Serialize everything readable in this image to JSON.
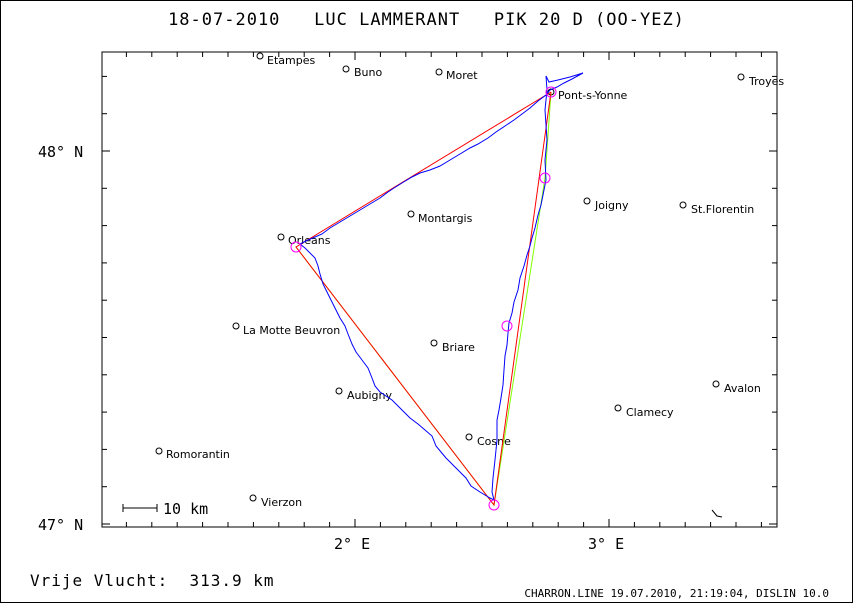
{
  "header": {
    "date": "18-07-2010",
    "pilot": "LUC LAMMERANT",
    "glider": "PIK 20 D (OO-YEZ)"
  },
  "axes": {
    "lat_labels": [
      "48° N",
      "47° N"
    ],
    "lon_labels": [
      "2° E",
      "3° E"
    ]
  },
  "scale_label": "10 km",
  "towns": [
    {
      "name": "Etampes"
    },
    {
      "name": "Buno"
    },
    {
      "name": "Moret"
    },
    {
      "name": "Troyes"
    },
    {
      "name": "Pont-s-Yonne"
    },
    {
      "name": "Joigny"
    },
    {
      "name": "St.Florentin"
    },
    {
      "name": "Montargis"
    },
    {
      "name": "Orleans"
    },
    {
      "name": "La Motte Beuvron"
    },
    {
      "name": "Briare"
    },
    {
      "name": "Avalon"
    },
    {
      "name": "Aubigny"
    },
    {
      "name": "Clamecy"
    },
    {
      "name": "Cosne"
    },
    {
      "name": "Romorantin"
    },
    {
      "name": "Vierzon"
    }
  ],
  "footer": {
    "distance_label": "Vrije Vlucht:",
    "distance_value": "313.9 km",
    "program": "CHARRON.LINE 19.07.2010, 21:19:04, DISLIN 10.0"
  },
  "colors": {
    "track": "#0000ff",
    "task": "#ff0000",
    "declared": "#7fff00",
    "turnpoint": "#ff00ff"
  }
}
